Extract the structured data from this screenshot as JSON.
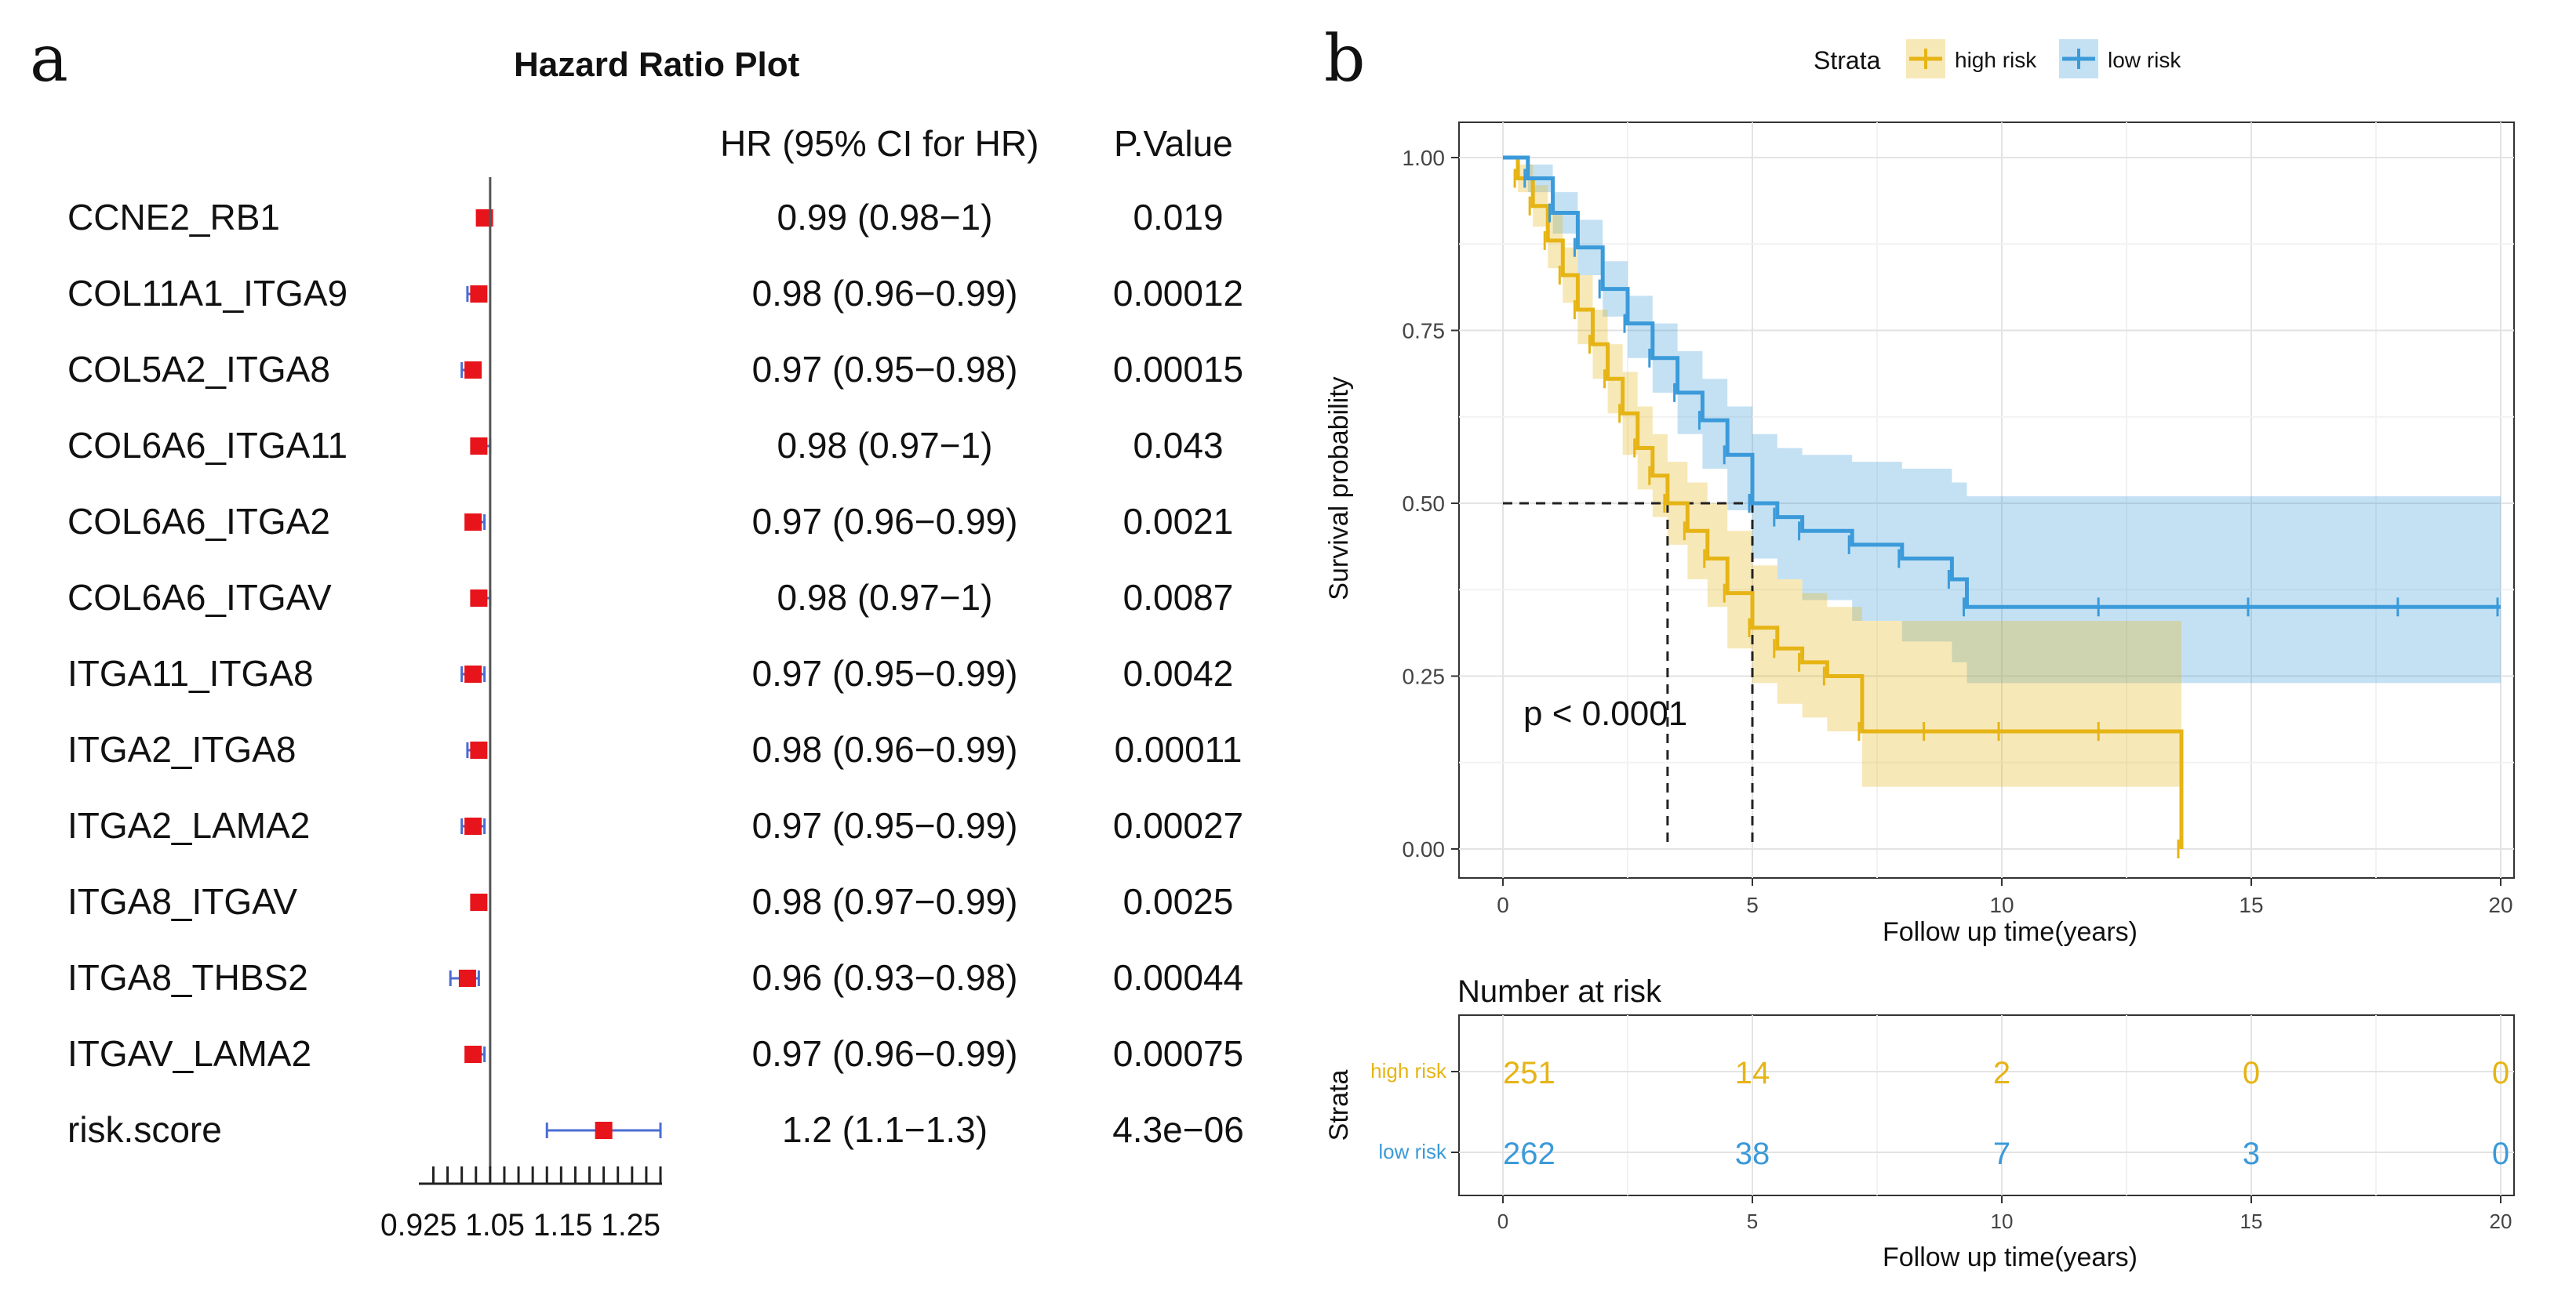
{
  "panel_a": {
    "letter": "a",
    "title": "Hazard Ratio Plot",
    "col_hr_header": "HR (95% CI for HR)",
    "col_p_header": "P.Value",
    "colors": {
      "point": "#e8141b",
      "ci": "#4b6cd0",
      "ref_line": "#555555"
    }
  },
  "panel_b": {
    "letter": "b",
    "legend_title": "Strata",
    "colors": {
      "high": "#e6b415",
      "low": "#3b9ad9"
    },
    "pvalue_text": "p < 0.0001",
    "risk_table_title": "Number at risk",
    "risk_ylabel": "Strata",
    "risk_xlabel": "Follow up time(years)"
  },
  "chart_data": [
    {
      "type": "forest",
      "title": "Hazard Ratio Plot",
      "xlim": [
        0.88,
        1.3
      ],
      "ref_value": 1.0,
      "tick_values": [
        0.9,
        0.925,
        0.95,
        0.975,
        1.0,
        1.025,
        1.05,
        1.075,
        1.1,
        1.125,
        1.15,
        1.175,
        1.2,
        1.225,
        1.25,
        1.275,
        1.3
      ],
      "tick_labels": [
        "0.925",
        "1.05",
        "1.15",
        "1.25"
      ],
      "rows": [
        {
          "label": "CCNE2_RB1",
          "hr": 0.99,
          "lo": 0.98,
          "hi": 1.0,
          "hr_text": "0.99 (0.98−1)",
          "p": "0.019"
        },
        {
          "label": "COL11A1_ITGA9",
          "hr": 0.98,
          "lo": 0.96,
          "hi": 0.99,
          "hr_text": "0.98 (0.96−0.99)",
          "p": "0.00012"
        },
        {
          "label": "COL5A2_ITGA8",
          "hr": 0.97,
          "lo": 0.95,
          "hi": 0.98,
          "hr_text": "0.97 (0.95−0.98)",
          "p": "0.00015"
        },
        {
          "label": "COL6A6_ITGA11",
          "hr": 0.98,
          "lo": 0.97,
          "hi": 1.0,
          "hr_text": "0.98 (0.97−1)",
          "p": "0.043"
        },
        {
          "label": "COL6A6_ITGA2",
          "hr": 0.97,
          "lo": 0.96,
          "hi": 0.99,
          "hr_text": "0.97 (0.96−0.99)",
          "p": "0.0021"
        },
        {
          "label": "COL6A6_ITGAV",
          "hr": 0.98,
          "lo": 0.97,
          "hi": 1.0,
          "hr_text": "0.98 (0.97−1)",
          "p": "0.0087"
        },
        {
          "label": "ITGA11_ITGA8",
          "hr": 0.97,
          "lo": 0.95,
          "hi": 0.99,
          "hr_text": "0.97 (0.95−0.99)",
          "p": "0.0042"
        },
        {
          "label": "ITGA2_ITGA8",
          "hr": 0.98,
          "lo": 0.96,
          "hi": 0.99,
          "hr_text": "0.98 (0.96−0.99)",
          "p": "0.00011"
        },
        {
          "label": "ITGA2_LAMA2",
          "hr": 0.97,
          "lo": 0.95,
          "hi": 0.99,
          "hr_text": "0.97 (0.95−0.99)",
          "p": "0.00027"
        },
        {
          "label": "ITGA8_ITGAV",
          "hr": 0.98,
          "lo": 0.97,
          "hi": 0.99,
          "hr_text": "0.98 (0.97−0.99)",
          "p": "0.0025"
        },
        {
          "label": "ITGA8_THBS2",
          "hr": 0.96,
          "lo": 0.93,
          "hi": 0.98,
          "hr_text": "0.96 (0.93−0.98)",
          "p": "0.00044"
        },
        {
          "label": "ITGAV_LAMA2",
          "hr": 0.97,
          "lo": 0.96,
          "hi": 0.99,
          "hr_text": "0.97 (0.96−0.99)",
          "p": "0.00075"
        },
        {
          "label": "risk.score",
          "hr": 1.2,
          "lo": 1.1,
          "hi": 1.3,
          "hr_text": "1.2 (1.1−1.3)",
          "p": "4.3e−06"
        }
      ]
    },
    {
      "type": "line",
      "subtype": "kaplan-meier",
      "xlabel": "Follow up time(years)",
      "ylabel": "Survival probability",
      "xlim": [
        0,
        20
      ],
      "ylim": [
        0,
        1
      ],
      "xticks": [
        0,
        5,
        10,
        15,
        20
      ],
      "yticks": [
        0.0,
        0.25,
        0.5,
        0.75,
        1.0
      ],
      "ytick_labels": [
        "0.00",
        "0.25",
        "0.50",
        "0.75",
        "1.00"
      ],
      "median_survival": {
        "high risk": 3.3,
        "low risk": 5.0
      },
      "series": [
        {
          "name": "high risk",
          "color": "#e6b415",
          "x": [
            0,
            0.3,
            0.6,
            0.9,
            1.2,
            1.5,
            1.8,
            2.1,
            2.4,
            2.7,
            3.0,
            3.3,
            3.7,
            4.1,
            4.5,
            5.0,
            5.5,
            6.0,
            6.5,
            7.2,
            8.5,
            10.0,
            12.0,
            13.6
          ],
          "y": [
            1.0,
            0.97,
            0.93,
            0.88,
            0.83,
            0.78,
            0.73,
            0.68,
            0.63,
            0.58,
            0.54,
            0.5,
            0.46,
            0.42,
            0.37,
            0.32,
            0.29,
            0.27,
            0.25,
            0.17,
            0.17,
            0.17,
            0.17,
            0.0
          ],
          "ci_upper": [
            1.0,
            0.99,
            0.96,
            0.92,
            0.87,
            0.83,
            0.78,
            0.73,
            0.69,
            0.64,
            0.6,
            0.56,
            0.53,
            0.5,
            0.46,
            0.41,
            0.39,
            0.37,
            0.35,
            0.33,
            0.33,
            0.33,
            0.33,
            0.33
          ],
          "ci_lower": [
            1.0,
            0.95,
            0.9,
            0.84,
            0.79,
            0.73,
            0.68,
            0.63,
            0.57,
            0.52,
            0.48,
            0.44,
            0.39,
            0.35,
            0.29,
            0.24,
            0.21,
            0.19,
            0.17,
            0.09,
            0.09,
            0.09,
            0.09,
            0.09
          ]
        },
        {
          "name": "low risk",
          "color": "#3b9ad9",
          "x": [
            0,
            0.5,
            1.0,
            1.5,
            2.0,
            2.5,
            3.0,
            3.5,
            4.0,
            4.5,
            5.0,
            5.5,
            6.0,
            7.0,
            8.0,
            9.0,
            9.3,
            12.0,
            15.0,
            18.0,
            20.0
          ],
          "y": [
            1.0,
            0.97,
            0.92,
            0.87,
            0.81,
            0.76,
            0.71,
            0.66,
            0.62,
            0.57,
            0.5,
            0.48,
            0.46,
            0.44,
            0.42,
            0.39,
            0.35,
            0.35,
            0.35,
            0.35,
            0.35
          ],
          "ci_upper": [
            1.0,
            0.99,
            0.95,
            0.91,
            0.85,
            0.8,
            0.76,
            0.72,
            0.68,
            0.64,
            0.6,
            0.58,
            0.57,
            0.56,
            0.55,
            0.53,
            0.51,
            0.51,
            0.51,
            0.51,
            0.51
          ],
          "ci_lower": [
            1.0,
            0.95,
            0.89,
            0.83,
            0.77,
            0.71,
            0.66,
            0.6,
            0.55,
            0.49,
            0.42,
            0.39,
            0.36,
            0.33,
            0.3,
            0.27,
            0.24,
            0.24,
            0.24,
            0.24,
            0.24
          ]
        }
      ],
      "annotations": [
        "p < 0.0001"
      ]
    },
    {
      "type": "table",
      "title": "Number at risk",
      "xlabel": "Follow up time(years)",
      "ylabel": "Strata",
      "times": [
        0,
        5,
        10,
        15,
        20
      ],
      "rows": [
        {
          "name": "high risk",
          "color": "#e6b415",
          "values": [
            251,
            14,
            2,
            0,
            0
          ]
        },
        {
          "name": "low risk",
          "color": "#3b9ad9",
          "values": [
            262,
            38,
            7,
            3,
            0
          ]
        }
      ]
    }
  ]
}
